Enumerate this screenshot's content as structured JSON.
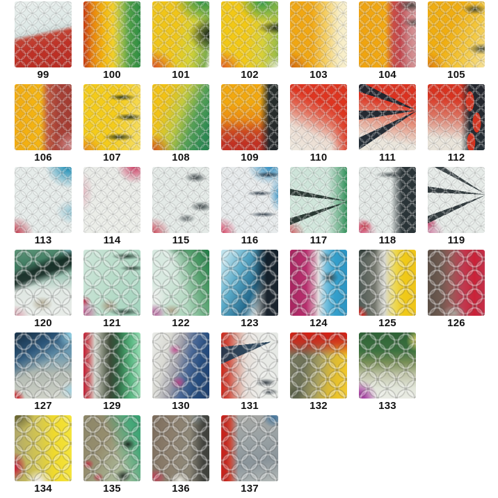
{
  "page": {
    "background": "#ffffff"
  },
  "catalog": {
    "description": "fish-scale tape swatch grid",
    "rows": [
      {
        "items": [
          {
            "label": "99",
            "texture": "fine",
            "bg": "linear-gradient(168deg, #e9efed 0%, #dde8e6 40%, #cdd8d6 46%, #c24334 52%, #bf3126 68%, #b92c22 100%)"
          },
          {
            "label": "100",
            "texture": "fine",
            "bg": "linear-gradient(90deg, #c63a10 0%, #e8820e 16%, #f4b50e 36%, #f2cf2a 52%, #a8c24a 66%, #50a047 80%, #2d8c42 100%)"
          },
          {
            "label": "101",
            "texture": "fine",
            "bg": "radial-gradient(ellipse 60px 45px at 88% 0%, #2e9346 0%, rgba(46,147,70,0) 68%), radial-gradient(ellipse 55px 45px at 100% 50%, rgba(16,22,18,0.92) 0%, rgba(16,22,18,0) 55%), radial-gradient(ellipse 55px 42px at 0% 100%, #d94f24 0%, rgba(217,79,36,0) 62%), linear-gradient(100deg, #f0c518 42%, #d3d236 70%, #7fae4c 92%, #e8ecd8 100%)"
          },
          {
            "label": "102",
            "texture": "fine",
            "bg": "radial-gradient(ellipse 55px 50px at 72% 0%, #2f9a4a 0%, rgba(47,154,74,0) 62%), radial-gradient(ellipse 48px 16px at 98% 40%, rgba(15,20,18,0.85) 0%, rgba(15,20,18,0) 60%), radial-gradient(ellipse 55px 45px at 0% 100%, #e05a22 0%, rgba(224,90,34,0) 58%), radial-gradient(ellipse 30px 25px at 100% 100%, #eef0e2 0%, rgba(238,240,226,0) 70%), linear-gradient(95deg, #f2c815 45%, #d8d038 72%, #8fb84a 100%)"
          },
          {
            "label": "103",
            "texture": "fine",
            "bg": "radial-gradient(ellipse 50px 40px at 0% 100%, #cf6410 0%, rgba(207,100,16,0) 58%), linear-gradient(90deg, #f1a712 38%, #f5ce62 62%, #f7ecc2 85%, #f8f0d0 100%)"
          },
          {
            "label": "104",
            "texture": "fine",
            "bg": "radial-gradient(ellipse 38px 16px at 92% 6%, rgba(45,55,50,0.8) 0%, rgba(45,55,50,0) 60%), radial-gradient(ellipse 30px 12px at 98% 32%, rgba(45,55,50,0.7) 0%, rgba(45,55,50,0) 60%), linear-gradient(90deg, #f0a30f 0%, #f2a911 46%, #cb4e45 60%, #c2444a 72%, #cd7d80 86%, #d7989b 100%)"
          },
          {
            "label": "105",
            "texture": "fine",
            "bg": "radial-gradient(ellipse 28px 12px at 82% 12%, rgba(40,50,45,0.85) 0%, rgba(40,50,45,0) 62%), radial-gradient(ellipse 32px 13px at 95% 72%, rgba(40,50,45,0.85) 0%, rgba(40,50,45,0) 62%), radial-gradient(ellipse 45px 40px at 0% 100%, #dd7c12 0%, rgba(221,124,18,0) 58%), linear-gradient(115deg, #f0ad10 40%, #f4c83e 70%, #f6e19a 100%)"
          }
        ]
      },
      {
        "items": [
          {
            "label": "106",
            "texture": "fine",
            "bg": "radial-gradient(ellipse 40px 35px at 100% 92%, #d49294 0%, rgba(212,146,148,0) 60%), linear-gradient(90deg, #f2ab10 0%, #f4b513 46%, #c05a40 58%, #a84136 75%, #a33b31 100%)"
          },
          {
            "label": "107",
            "texture": "fine",
            "bg": "radial-gradient(ellipse 30px 7px at 68% 20%, rgba(25,40,32,0.9) 0%, rgba(25,40,32,0) 68%), radial-gradient(ellipse 32px 8px at 80% 50%, rgba(25,40,32,0.9) 0%, rgba(25,40,32,0) 68%), radial-gradient(ellipse 34px 8px at 62% 80%, rgba(25,40,32,0.9) 0%, rgba(25,40,32,0) 68%), radial-gradient(ellipse 50px 40px at 0% 100%, #e8871a 0%, rgba(232,135,26,0) 58%), linear-gradient(100deg, #f4cb1a 55%, #f6df6a 100%)"
          },
          {
            "label": "108",
            "texture": "fine",
            "bg": "radial-gradient(ellipse 50px 42px at 0% 100%, #d0511c 0%, rgba(208,81,28,0) 58%), linear-gradient(110deg, #f2c214 22%, #c2c93e 46%, #55a055 68%, #2d8a52 88%, #27814d 100%)"
          },
          {
            "label": "109",
            "texture": "fine",
            "bg": "linear-gradient(90deg, rgba(30,40,44,0) 68%, rgba(30,40,44,0.96) 84%), linear-gradient(180deg, #f2a80e 28%, #ec8c10 52%, #cc4a20 72%, #c23123 90%)"
          },
          {
            "label": "110",
            "texture": "fine",
            "bg": "linear-gradient(270deg, rgba(220,52,30,0.9) 0%, rgba(220,52,30,0) 28%), linear-gradient(205deg, #df3520 32%, #e4705c 50%, #ecdcd1 72%, #eee9df 100%)"
          },
          {
            "label": "111",
            "texture": "fine",
            "bg": "conic-gradient(from 228deg at 102% 40%, rgba(26,36,46,0) 0deg 8deg, rgba(26,36,46,0.95) 8deg 17deg, rgba(26,36,46,0) 17deg 33deg, rgba(26,36,46,0.95) 33deg 42deg, rgba(26,36,46,0) 42deg 60deg, rgba(26,36,46,0.95) 60deg 69deg, rgba(26,36,46,0) 69deg 360deg), linear-gradient(190deg, #dc3220 28%, #e58a75 52%, #ebe6dc 82%)"
          },
          {
            "label": "112",
            "texture": "fine",
            "bg": "radial-gradient(ellipse 10px 24px at 74% 26%, #d5331f 58%, rgba(213,51,31,0) 62%), radial-gradient(ellipse 10px 24px at 86% 58%, #d5331f 58%, rgba(213,51,31,0) 62%), radial-gradient(ellipse 10px 22px at 76% 88%, #d5331f 58%, rgba(213,51,31,0) 62%), linear-gradient(90deg, rgba(28,38,46,0) 58%, rgba(28,38,46,0.96) 74%), linear-gradient(185deg, #d83320 22%, #dd7a68 52%, #e9e4da 82%)"
          }
        ]
      },
      {
        "items": [
          {
            "label": "113",
            "texture": "fine",
            "bg": "radial-gradient(ellipse 55px 50px at 95% 0%, #2e97bc 8%, rgba(46,151,188,0) 62%), radial-gradient(ellipse 38px 30px at 100% 68%, rgba(72,160,190,0.55) 0%, rgba(72,160,190,0) 60%), radial-gradient(ellipse 48px 42px at 0% 100%, #c23347 0%, rgba(194,51,71,0) 58%), linear-gradient(0deg, #e6ecea 0%, #e6ecea 100%)"
          },
          {
            "label": "114",
            "texture": "fine",
            "bg": "radial-gradient(ellipse 45px 42px at 90% 0%, #d14a6e 4%, rgba(209,74,110,0) 58%), radial-gradient(ellipse 26px 55px at 0% 38%, rgba(209,74,110,0.3) 0%, rgba(209,74,110,0) 55%), linear-gradient(0deg, #eceee9 0%, #e9ebe7 100%)"
          },
          {
            "label": "115",
            "texture": "fine",
            "bg": "radial-gradient(ellipse 26px 12px at 76% 16%, rgba(30,40,44,0.88) 0%, rgba(30,40,44,0) 62%), radial-gradient(ellipse 26px 12px at 86% 60%, rgba(30,40,44,0.88) 0%, rgba(30,40,44,0) 62%), radial-gradient(ellipse 20px 10px at 60% 78%, rgba(30,40,44,0.7) 0%, rgba(30,40,44,0) 65%), radial-gradient(ellipse 45px 40px at 0% 100%, #cc4254 0%, rgba(204,66,84,0) 58%), linear-gradient(0deg, #e4eae7 0%, #e4eae7 100%)"
          },
          {
            "label": "116",
            "texture": "fine",
            "bg": "radial-gradient(ellipse 32px 7px at 82% 12%, rgba(20,35,50,0.9) 0%, rgba(20,35,50,0) 65%), radial-gradient(ellipse 30px 6px at 68% 40%, rgba(20,35,50,0.9) 0%, rgba(20,35,50,0) 65%), radial-gradient(ellipse 30px 6px at 74% 72%, rgba(20,35,50,0.85) 0%, rgba(20,35,50,0) 65%), radial-gradient(ellipse 55px 45px at 85% 0%, #3e96c6 4%, rgba(62,150,198,0) 58%), radial-gradient(ellipse 22px 42px at 100% 42%, rgba(47,143,196,0.85) 0%, rgba(47,143,196,0) 60%), radial-gradient(ellipse 45px 45px at 0% 100%, #d63c5e 0%, rgba(214,60,94,0) 52%), linear-gradient(0deg, #e7ebec 0%, #e7ebec 100%)"
          },
          {
            "label": "117",
            "texture": "fine",
            "bg": "conic-gradient(from 238deg at 103% 52%, rgba(25,40,35,0) 0deg 10deg, rgba(25,40,35,0.9) 10deg 16deg, rgba(25,40,35,0) 16deg 38deg, rgba(25,40,35,0.9) 38deg 44deg, rgba(25,40,35,0) 44deg 360deg), linear-gradient(270deg, #2f9058 0%, rgba(47,144,88,0.6) 12%, rgba(160,216,190,0) 34%), radial-gradient(ellipse 42px 38px at 0% 100%, #d05a60 0%, rgba(208,90,96,0) 52%), linear-gradient(0deg, #d2e7dc 0%, #cde4d9 100%)"
          },
          {
            "label": "118",
            "texture": "fine",
            "bg": "radial-gradient(ellipse 40px 8px at 58% 12%, rgba(32,42,46,0.8) 0%, rgba(32,42,46,0) 62%), linear-gradient(90deg, rgba(32,42,46,0) 56%, rgba(32,42,46,0.95) 76%), radial-gradient(ellipse 16px 14px at 10% 90%, #cc2f42 0%, rgba(204,47,66,0) 68%), radial-gradient(ellipse 46px 40px at 0% 100%, #d4507a 0%, rgba(212,80,122,0) 58%), linear-gradient(0deg, #e3e9e6 0%, #e3e9e6 100%)"
          },
          {
            "label": "119",
            "texture": "fine",
            "bg": "conic-gradient(from 232deg at 103% 42%, rgba(30,40,44,0) 0deg 12deg, rgba(30,40,44,0.9) 12deg 18deg, rgba(30,40,44,0) 18deg 40deg, rgba(30,40,44,0.9) 40deg 46deg, rgba(30,40,44,0) 46deg 66deg, rgba(30,40,44,0.85) 66deg 71deg, rgba(30,40,44,0) 71deg 360deg), radial-gradient(ellipse 16px 14px at 4% 86%, #c2486e 0%, rgba(194,72,110,0) 68%), radial-gradient(ellipse 42px 36px at 0% 100%, #cf7da2 0%, rgba(207,125,162,0) 58%), linear-gradient(0deg, #e6ebe8 0%, #e6ebe8 100%)"
          }
        ]
      },
      {
        "items": [
          {
            "label": "120",
            "texture": "coarse",
            "bg": "linear-gradient(160deg, rgba(16,36,30,0) 22%, rgba(16,36,30,0.88) 32%, rgba(16,36,30,0.88) 40%, rgba(16,36,30,0) 50%), radial-gradient(ellipse 28px 24px at 96% 0%, #7fb8c0 0%, rgba(127,184,192,0) 58%), linear-gradient(170deg, #5d9579 0%, #3e7a60 24%, rgba(62,122,96,0) 44%), radial-gradient(ellipse 38px 28px at 0% 100%, #d898a8 0%, rgba(216,152,168,0) 55%), radial-gradient(ellipse 26px 18px at 48% 82%, #b0a890 0%, rgba(176,168,144,0) 60%), linear-gradient(180deg, #9cc4b4 38%, #dfe7e2 62%, #e8ece8 100%)"
          },
          {
            "label": "121",
            "texture": "coarse",
            "bg": "radial-gradient(ellipse 34px 8px at 75% 10%, rgba(20,40,30,0.85) 0%, rgba(20,40,30,0) 62%), radial-gradient(ellipse 30px 7px at 86% 28%, rgba(20,40,30,0.8) 0%, rgba(20,40,30,0) 62%), radial-gradient(ellipse 36px 9px at 72% 94%, rgba(20,40,30,0.85) 0%, rgba(20,40,30,0) 62%), radial-gradient(ellipse 14px 12px at 2% 78%, #c03552 0%, rgba(192,53,82,0) 68%), radial-gradient(ellipse 36px 34px at 0% 95%, #c45a92 0%, rgba(196,90,146,0) 58%), radial-gradient(ellipse 24px 18px at 45% 85%, #a89a80 0%, rgba(168,154,128,0) 58%), linear-gradient(105deg, #cfe6da 0%, #b8dcc9 50%, #a5d4bf 100%)"
          },
          {
            "label": "122",
            "texture": "coarse",
            "bg": "linear-gradient(250deg, #1f7a44 0%, #4f9c68 22%, rgba(127,184,150,0) 52%), radial-gradient(ellipse 40px 14px at 55% 0%, rgba(30,90,55,0.75) 0%, rgba(30,90,55,0) 62%), radial-gradient(ellipse 28px 24px at 4% 96%, #bb5f9f 0%, rgba(187,95,159,0) 58%), radial-gradient(ellipse 22px 16px at 34% 92%, #b0a48c 0%, rgba(176,164,140,0) 58%), radial-gradient(ellipse 40px 34px at 0% 72%, #e9ede9 14%, rgba(233,237,233,0) 58%), linear-gradient(115deg, #d8e9e0 28%, #bcdcc8 58%, #8cc4a0 100%)"
          },
          {
            "label": "123",
            "texture": "coarse",
            "bg": "linear-gradient(90deg, rgba(16,26,36,0) 55%, rgba(16,26,36,0.95) 80%), linear-gradient(115deg, #bfe2ec 8%, #5aaac8 32%, #22688c 58%, rgba(34,104,140,0) 74%), radial-gradient(ellipse 14px 12px at 6% 96%, #cf6f92 0%, rgba(207,111,146,0) 68%), radial-gradient(ellipse 44px 38px at 0% 100%, #e9edeb 12%, rgba(233,237,235,0) 58%), linear-gradient(180deg, #7fb8cc 28%, #d8e4e2 68%, #e6ebe9 100%)"
          },
          {
            "label": "124",
            "texture": "coarse",
            "bg": "radial-gradient(ellipse 20px 15px at 70% 42%, rgba(50,62,66,0.85) 0%, rgba(50,62,66,0) 62%), radial-gradient(ellipse 18px 12px at 62% 12%, rgba(50,62,66,0.6) 0%, rgba(50,62,66,0) 62%), linear-gradient(90deg, #a82560 0%, #b92e6e 28%, #cf8ca8 42%, #e3dfdf 50%, #7cc2de 62%, #35a0cc 78%, #2b94c2 100%)"
          },
          {
            "label": "125",
            "texture": "coarse",
            "bg": "radial-gradient(ellipse 20px 22px at 0% 100%, #d02f28 28%, rgba(208,47,40,0) 68%), radial-gradient(ellipse 40px 22px at 8% 0%, rgba(40,52,48,0.88) 0%, rgba(40,52,48,0) 58%), linear-gradient(90deg, #4e5a55 0%, #75786e 28%, #d8d8d0 45%, #ecd95c 62%, #f0ca18 78%, #eec41a 100%)"
          },
          {
            "label": "126",
            "texture": "coarse",
            "bg": "radial-gradient(ellipse 30px 20px at 46% 96%, #a8a49c 0%, rgba(168,164,156,0) 58%), linear-gradient(90deg, #5c4f46 0%, #6e5a50 22%, #9a5a58 42%, #c03a50 62%, #ca2238 82%, #c5304a 100%)"
          }
        ]
      },
      {
        "items": [
          {
            "label": "127",
            "texture": "coarse",
            "bg": "radial-gradient(ellipse 22px 20px at 0% 100%, #d22c32 22%, rgba(210,44,50,0) 68%), radial-gradient(ellipse 38px 32px at 100% 4%, #8cc8dc 8%, rgba(140,200,220,0) 58%), linear-gradient(150deg, #1c3850 8%, #2c567a 28%, rgba(44,86,122,0) 50%), radial-gradient(ellipse 30px 24px at 100% 88%, #9fd0e0 0%, rgba(159,208,224,0) 58%), linear-gradient(180deg, #6a98b0 32%, #b0b8b0 62%, #cfd2c8 100%)"
          },
          {
            "label": "129",
            "texture": "coarse",
            "bg": "linear-gradient(90deg, #c02238 0%, #cc5058 8%, #d6d6ce 20%, #8c9282 32%, #3e4a38 46%, #2e5a3c 58%, #3f9360 72%, #62bd8a 86%, #9adbb4 100%)"
          },
          {
            "label": "130",
            "texture": "coarse",
            "bg": "radial-gradient(ellipse 15px 13px at 40% 26%, #c25a96 0%, rgba(194,90,150,0) 66%), radial-gradient(ellipse 17px 15px at 46% 76%, #b44888 0%, rgba(180,72,136,0) 66%), linear-gradient(105deg, #eaece8 0%, #d8d8d2 26%, #9c9ca8 44%, #4a6896 60%, #274e80 76%, #1c3c6a 100%)"
          },
          {
            "label": "131",
            "texture": "coarse",
            "bg": "conic-gradient(from 238deg at 88% 14%, rgba(30,58,82,0) 0deg 8deg, rgba(30,58,82,0.92) 8deg 26deg, rgba(30,58,82,0) 26deg 360deg), radial-gradient(ellipse 26px 10px at 78% 76%, rgba(30,40,50,0.85) 0%, rgba(30,40,50,0) 62%), radial-gradient(ellipse 20px 8px at 85% 90%, rgba(30,40,50,0.8) 0%, rgba(30,40,50,0) 62%), linear-gradient(90deg, #cc2a1e 0%, #d14a3c 12%, #dba396 28%, #e5dcd6 44%, #e9eae6 68%, #e6e9e5 100%)"
          },
          {
            "label": "132",
            "texture": "coarse",
            "bg": "linear-gradient(180deg, #d02418 6%, rgba(208,36,24,0.8) 16%, rgba(208,36,24,0) 36%), radial-gradient(ellipse 30px 24px at 6% 92%, rgba(70,78,56,0.65) 0%, rgba(70,78,56,0) 58%), linear-gradient(100deg, #7c7c62 0%, #6e7258 28%, #a8a060 52%, #d8b838 70%, #ecc428 86%, #eec83a 100%)"
          },
          {
            "label": "133",
            "texture": "coarse",
            "bg": "radial-gradient(ellipse 44px 44px at 0% 100%, #a844a4 18%, rgba(168,68,164,0) 62%), radial-gradient(ellipse 24px 28px at 100% 12%, #ded668 0%, rgba(222,214,104,0) 58%), linear-gradient(180deg, #2e6236 0%, #3d7240 28%, #7a9058 46%, #c0c4a8 64%, #e2e6da 84%, #e9ebe3 100%)"
          }
        ]
      },
      {
        "items": [
          {
            "label": "134",
            "texture": "coarse",
            "bg": "radial-gradient(ellipse 44px 38px at 4% 0%, #6e6a34 8%, rgba(110,106,52,0) 58%), radial-gradient(ellipse 28px 34px at 0% 78%, #c42c3c 12%, rgba(196,44,60,0) 62%), radial-gradient(ellipse 30px 28px at 42% 100%, #f0ece2 8%, rgba(240,236,226,0) 62%), linear-gradient(90deg, #b0a86a 0%, #d6c84e 45%, #f0da2c 70%, #f4e43c 100%)"
          },
          {
            "label": "135",
            "texture": "coarse",
            "bg": "radial-gradient(ellipse 17px 13px at 78% 44%, rgba(20,30,25,0.9) 0%, rgba(20,30,25,0) 62%), radial-gradient(ellipse 19px 15px at 70% 92%, rgba(20,30,25,0.88) 0%, rgba(20,30,25,0) 62%), linear-gradient(250deg, #35a070 0%, #4aa87a 18%, rgba(74,168,122,0) 48%), radial-gradient(ellipse 13px 11px at 8% 74%, #c23848 0%, rgba(194,56,72,0) 66%), radial-gradient(ellipse 12px 10px at 26% 94%, #b83a4a 0%, rgba(184,58,74,0) 66%), linear-gradient(120deg, #8c8668 0%, #968e6e 38%, #a8b494 68%, #9cc0a0 100%)"
          },
          {
            "label": "136",
            "texture": "coarse",
            "bg": "linear-gradient(90deg, rgba(58,60,56,0) 66%, rgba(58,60,56,0.9) 90%), radial-gradient(ellipse 28px 20px at 84% 4%, #b0c2c6 0%, rgba(176,194,198,0) 58%), radial-gradient(ellipse 24px 20px at 6% 94%, #c04458 8%, rgba(192,68,88,0) 62%), radial-gradient(ellipse 24px 18px at 48% 98%, #e6e6de 0%, rgba(230,230,222,0) 62%), linear-gradient(100deg, #7c6c5c 0%, #8c7e6c 34%, #8e8878 60%, #787468 100%)"
          },
          {
            "label": "137",
            "texture": "coarse",
            "bg": "radial-gradient(ellipse 28px 24px at 92% 4%, #4a7aa0 8%, rgba(74,122,160,0) 58%), linear-gradient(90deg, #c6251e 8%, #cc4838 16%, rgba(204,72,56,0) 30%), linear-gradient(170deg, #a8a8a4 0%, #9aa2a4 38%, #8a949a 70%, #b4bab8 100%)"
          }
        ]
      }
    ]
  }
}
